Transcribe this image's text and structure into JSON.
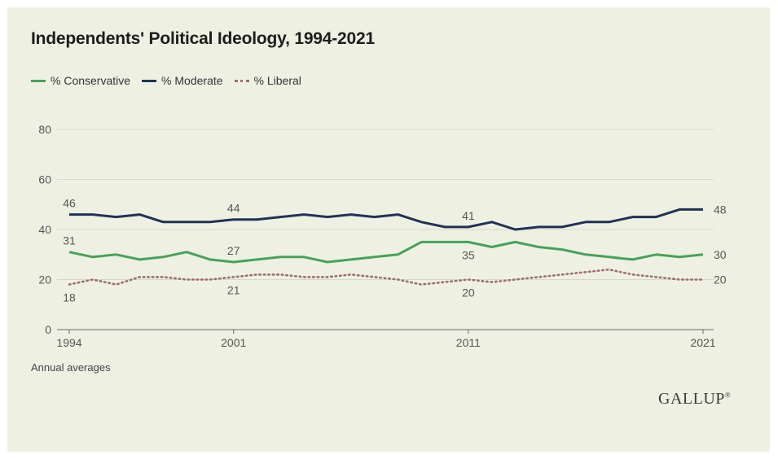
{
  "colors": {
    "conservative": "#46a357",
    "moderate": "#1f3357",
    "liberal": "#a26b6b",
    "grid": "#d6d9c8",
    "axis_text": "#555555"
  },
  "footnote": "Annual averages",
  "logo": {
    "text": "GALLUP",
    "mark": "®"
  },
  "chart_data": {
    "type": "line",
    "title": "Independents' Political Ideology, 1994-2021",
    "xlabel": "",
    "ylabel": "",
    "x": [
      1994,
      1995,
      1996,
      1997,
      1998,
      1999,
      2000,
      2001,
      2002,
      2003,
      2004,
      2005,
      2006,
      2007,
      2008,
      2009,
      2010,
      2011,
      2012,
      2013,
      2014,
      2015,
      2016,
      2017,
      2018,
      2019,
      2020,
      2021
    ],
    "xticks": [
      1994,
      2001,
      2011,
      2021
    ],
    "ylim": [
      0,
      80
    ],
    "yticks": [
      0,
      20,
      40,
      60,
      80
    ],
    "grid": true,
    "legend_placement": "top-left",
    "series": [
      {
        "name": "% Conservative",
        "key": "conservative",
        "style": "solid",
        "values": [
          31,
          29,
          30,
          28,
          29,
          31,
          28,
          27,
          28,
          29,
          29,
          27,
          28,
          29,
          30,
          35,
          35,
          35,
          33,
          35,
          33,
          32,
          30,
          29,
          28,
          30,
          29,
          30
        ]
      },
      {
        "name": "% Moderate",
        "key": "moderate",
        "style": "solid",
        "values": [
          46,
          46,
          45,
          46,
          43,
          43,
          43,
          44,
          44,
          45,
          46,
          45,
          46,
          45,
          46,
          43,
          41,
          41,
          43,
          40,
          41,
          41,
          43,
          43,
          45,
          45,
          48,
          48
        ]
      },
      {
        "name": "% Liberal",
        "key": "liberal",
        "style": "dotted",
        "values": [
          18,
          20,
          18,
          21,
          21,
          20,
          20,
          21,
          22,
          22,
          21,
          21,
          22,
          21,
          20,
          18,
          19,
          20,
          19,
          20,
          21,
          22,
          23,
          24,
          22,
          21,
          20,
          20
        ]
      }
    ],
    "annotations": [
      {
        "series": "moderate",
        "x": 1994,
        "text": "46",
        "pos": "above"
      },
      {
        "series": "moderate",
        "x": 2001,
        "text": "44",
        "pos": "above"
      },
      {
        "series": "moderate",
        "x": 2011,
        "text": "41",
        "pos": "above"
      },
      {
        "series": "moderate",
        "x": 2021,
        "text": "48",
        "pos": "right"
      },
      {
        "series": "conservative",
        "x": 1994,
        "text": "31",
        "pos": "above"
      },
      {
        "series": "conservative",
        "x": 2001,
        "text": "27",
        "pos": "above"
      },
      {
        "series": "conservative",
        "x": 2011,
        "text": "35",
        "pos": "below"
      },
      {
        "series": "conservative",
        "x": 2021,
        "text": "30",
        "pos": "right"
      },
      {
        "series": "liberal",
        "x": 1994,
        "text": "18",
        "pos": "below"
      },
      {
        "series": "liberal",
        "x": 2001,
        "text": "21",
        "pos": "below"
      },
      {
        "series": "liberal",
        "x": 2011,
        "text": "20",
        "pos": "below"
      },
      {
        "series": "liberal",
        "x": 2021,
        "text": "20",
        "pos": "right"
      }
    ]
  }
}
